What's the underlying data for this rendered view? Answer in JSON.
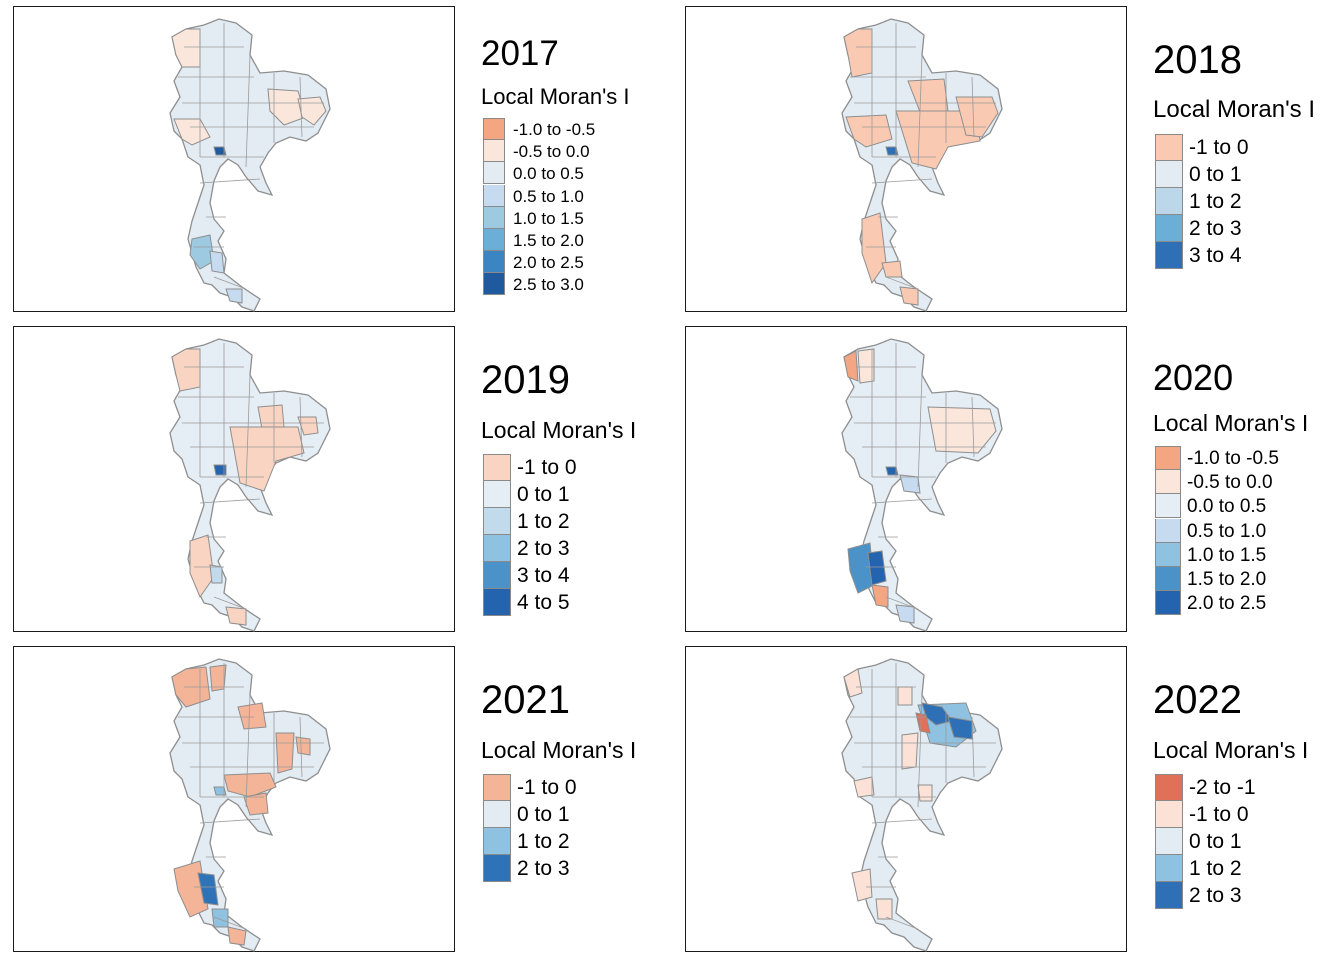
{
  "legend_title": "Local Moran's I",
  "panels": [
    {
      "year": "2017",
      "legend": [
        {
          "label": "-1.0 to -0.5",
          "color": "#f4a582"
        },
        {
          "label": "-0.5 to 0.0",
          "color": "#fbe6dc"
        },
        {
          "label": "0.0 to 0.5",
          "color": "#e3ecf3"
        },
        {
          "label": "0.5 to 1.0",
          "color": "#c6dbef"
        },
        {
          "label": "1.0 to 1.5",
          "color": "#9ecae1"
        },
        {
          "label": "1.5 to 2.0",
          "color": "#6baed6"
        },
        {
          "label": "2.0 to 2.5",
          "color": "#3a85c2"
        },
        {
          "label": "2.5 to 3.0",
          "color": "#1f5a9e"
        }
      ]
    },
    {
      "year": "2018",
      "legend": [
        {
          "label": "-1 to 0",
          "color": "#f9c9b2"
        },
        {
          "label": "0 to 1",
          "color": "#e3ecf3"
        },
        {
          "label": "1 to 2",
          "color": "#bcd7ea"
        },
        {
          "label": "2 to 3",
          "color": "#6baed6"
        },
        {
          "label": "3 to 4",
          "color": "#2e6fb5"
        }
      ]
    },
    {
      "year": "2019",
      "legend": [
        {
          "label": "-1 to 0",
          "color": "#f9d4c2"
        },
        {
          "label": "0 to 1",
          "color": "#e6eef5"
        },
        {
          "label": "1 to 2",
          "color": "#c2dbec"
        },
        {
          "label": "2 to 3",
          "color": "#8fc1e0"
        },
        {
          "label": "3 to 4",
          "color": "#4b92c9"
        },
        {
          "label": "4 to 5",
          "color": "#2463ad"
        }
      ]
    },
    {
      "year": "2020",
      "legend": [
        {
          "label": "-1.0 to -0.5",
          "color": "#f4a582"
        },
        {
          "label": "-0.5 to 0.0",
          "color": "#fbe6dc"
        },
        {
          "label": "0.0 to 0.5",
          "color": "#e6eef5"
        },
        {
          "label": "0.5 to 1.0",
          "color": "#c6dbef"
        },
        {
          "label": "1.0 to 1.5",
          "color": "#8fc1e0"
        },
        {
          "label": "1.5 to 2.0",
          "color": "#4b92c9"
        },
        {
          "label": "2.0 to 2.5",
          "color": "#2463ad"
        }
      ]
    },
    {
      "year": "2021",
      "legend": [
        {
          "label": "-1 to 0",
          "color": "#f4b498"
        },
        {
          "label": "0 to 1",
          "color": "#e3ecf3"
        },
        {
          "label": "1 to 2",
          "color": "#8fc1e0"
        },
        {
          "label": "2 to 3",
          "color": "#2e73b8"
        }
      ]
    },
    {
      "year": "2022",
      "legend": [
        {
          "label": "-2 to -1",
          "color": "#e07058"
        },
        {
          "label": "-1 to 0",
          "color": "#fbe1d6"
        },
        {
          "label": "0 to 1",
          "color": "#e3ecf3"
        },
        {
          "label": "1 to 2",
          "color": "#8fc1e0"
        },
        {
          "label": "2 to 3",
          "color": "#2e6fb5"
        }
      ]
    }
  ]
}
